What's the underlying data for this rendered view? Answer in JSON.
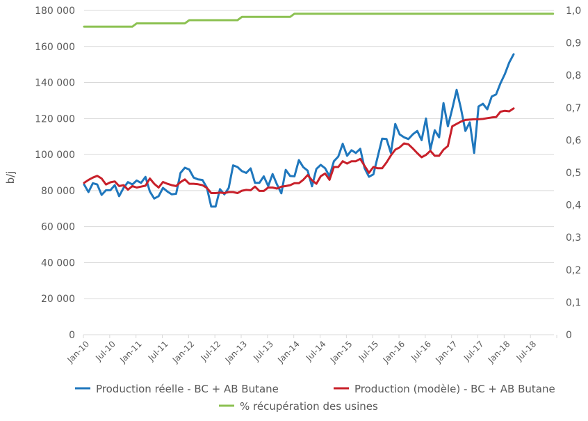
{
  "chart_data": {
    "type": "line",
    "title": "",
    "xlabel": "",
    "ylabel": "b/j",
    "y2label": "",
    "ylim": [
      0,
      180000
    ],
    "y2lim": [
      0,
      1.0
    ],
    "yticks": [
      "0",
      "20 000",
      "40 000",
      "60 000",
      "80 000",
      "100 000",
      "120 000",
      "140 000",
      "160 000",
      "180 000"
    ],
    "y2ticks": [
      "0",
      "0,1",
      "0,2",
      "0,3",
      "0,4",
      "0,5",
      "0,6",
      "0,7",
      "0,8",
      "0,9",
      "1,0"
    ],
    "x_start": "Jan-10",
    "x_end": "Dec-18",
    "x_unit": "month",
    "xticks": [
      "Jan-10",
      "Jul-10",
      "Jan-11",
      "Jul-11",
      "Jan-12",
      "Jul-12",
      "Jan-13",
      "Jul-13",
      "Jan-14",
      "Jul-14",
      "Jan-15",
      "Jul-15",
      "Jan-16",
      "Jul-16",
      "Jan-17",
      "Jul-17",
      "Jan-18",
      "Jul-18"
    ],
    "grid": true,
    "legend_position": "bottom",
    "series": [
      {
        "name": "Production réelle - BC + AB Butane",
        "axis": "left",
        "color": "#1f77bd",
        "start": "Jan-10",
        "values": [
          83400,
          79200,
          84100,
          83400,
          77600,
          80200,
          80200,
          83000,
          76900,
          81500,
          84700,
          83400,
          85600,
          84300,
          87600,
          79500,
          75600,
          76900,
          81500,
          79500,
          77900,
          78200,
          89800,
          92700,
          91700,
          87200,
          86200,
          85900,
          81700,
          71100,
          71100,
          80800,
          77900,
          81500,
          94000,
          93100,
          90800,
          89800,
          92300,
          84300,
          84300,
          87900,
          82500,
          89200,
          83400,
          78500,
          91500,
          88100,
          87900,
          96900,
          93000,
          91100,
          82400,
          92000,
          94300,
          92400,
          87900,
          96300,
          98900,
          106000,
          99300,
          102400,
          100900,
          103200,
          92400,
          87700,
          89000,
          98900,
          108800,
          108600,
          100900,
          117000,
          111200,
          109600,
          108600,
          111200,
          113100,
          108000,
          120000,
          102800,
          113500,
          109600,
          128600,
          115700,
          125400,
          135900,
          125400,
          113100,
          117900,
          100900,
          126700,
          128200,
          125100,
          132200,
          133400,
          139600,
          144700,
          151100,
          155700
        ]
      },
      {
        "name": "Production (modèle) - BC + AB Butane",
        "axis": "left",
        "color": "#c8202a",
        "start": "Jan-10",
        "values": [
          84300,
          85900,
          87200,
          88200,
          86700,
          83400,
          84600,
          85100,
          82500,
          83000,
          80500,
          82500,
          81700,
          82200,
          82700,
          86700,
          83800,
          81700,
          84800,
          83800,
          83000,
          82500,
          84700,
          86200,
          83800,
          83800,
          83500,
          83000,
          81500,
          78600,
          78600,
          78900,
          78600,
          79200,
          79200,
          78600,
          79900,
          80400,
          80200,
          82200,
          79800,
          79800,
          81700,
          81700,
          81100,
          82200,
          82500,
          83000,
          84100,
          84100,
          86000,
          88600,
          85700,
          83800,
          88000,
          89500,
          86000,
          93100,
          93100,
          96300,
          95000,
          96300,
          96300,
          97600,
          93700,
          89900,
          93100,
          92400,
          92400,
          95600,
          99500,
          102700,
          104000,
          106200,
          105700,
          103400,
          100800,
          98500,
          99800,
          102100,
          99300,
          99300,
          102700,
          104700,
          115700,
          117000,
          118300,
          119200,
          119400,
          119600,
          119600,
          119800,
          120200,
          120600,
          120800,
          123800,
          124300,
          124000,
          125600
        ]
      },
      {
        "name": "% récupération des usines",
        "axis": "right",
        "color": "#8cc152",
        "start": "Jan-10",
        "values": [
          0.95,
          0.95,
          0.95,
          0.95,
          0.95,
          0.95,
          0.95,
          0.95,
          0.95,
          0.95,
          0.95,
          0.95,
          0.96,
          0.96,
          0.96,
          0.96,
          0.96,
          0.96,
          0.96,
          0.96,
          0.96,
          0.96,
          0.96,
          0.96,
          0.97,
          0.97,
          0.97,
          0.97,
          0.97,
          0.97,
          0.97,
          0.97,
          0.97,
          0.97,
          0.97,
          0.97,
          0.98,
          0.98,
          0.98,
          0.98,
          0.98,
          0.98,
          0.98,
          0.98,
          0.98,
          0.98,
          0.98,
          0.98,
          0.99,
          0.99,
          0.99,
          0.99,
          0.99,
          0.99,
          0.99,
          0.99,
          0.99,
          0.99,
          0.99,
          0.99,
          0.99,
          0.99,
          0.99,
          0.99,
          0.99,
          0.99,
          0.99,
          0.99,
          0.99,
          0.99,
          0.99,
          0.99,
          0.99,
          0.99,
          0.99,
          0.99,
          0.99,
          0.99,
          0.99,
          0.99,
          0.99,
          0.99,
          0.99,
          0.99,
          0.99,
          0.99,
          0.99,
          0.99,
          0.99,
          0.99,
          0.99,
          0.99,
          0.99,
          0.99,
          0.99,
          0.99,
          0.99,
          0.99,
          0.99,
          0.99,
          0.99,
          0.99,
          0.99,
          0.99,
          0.99,
          0.99,
          0.99,
          0.99
        ]
      }
    ]
  }
}
